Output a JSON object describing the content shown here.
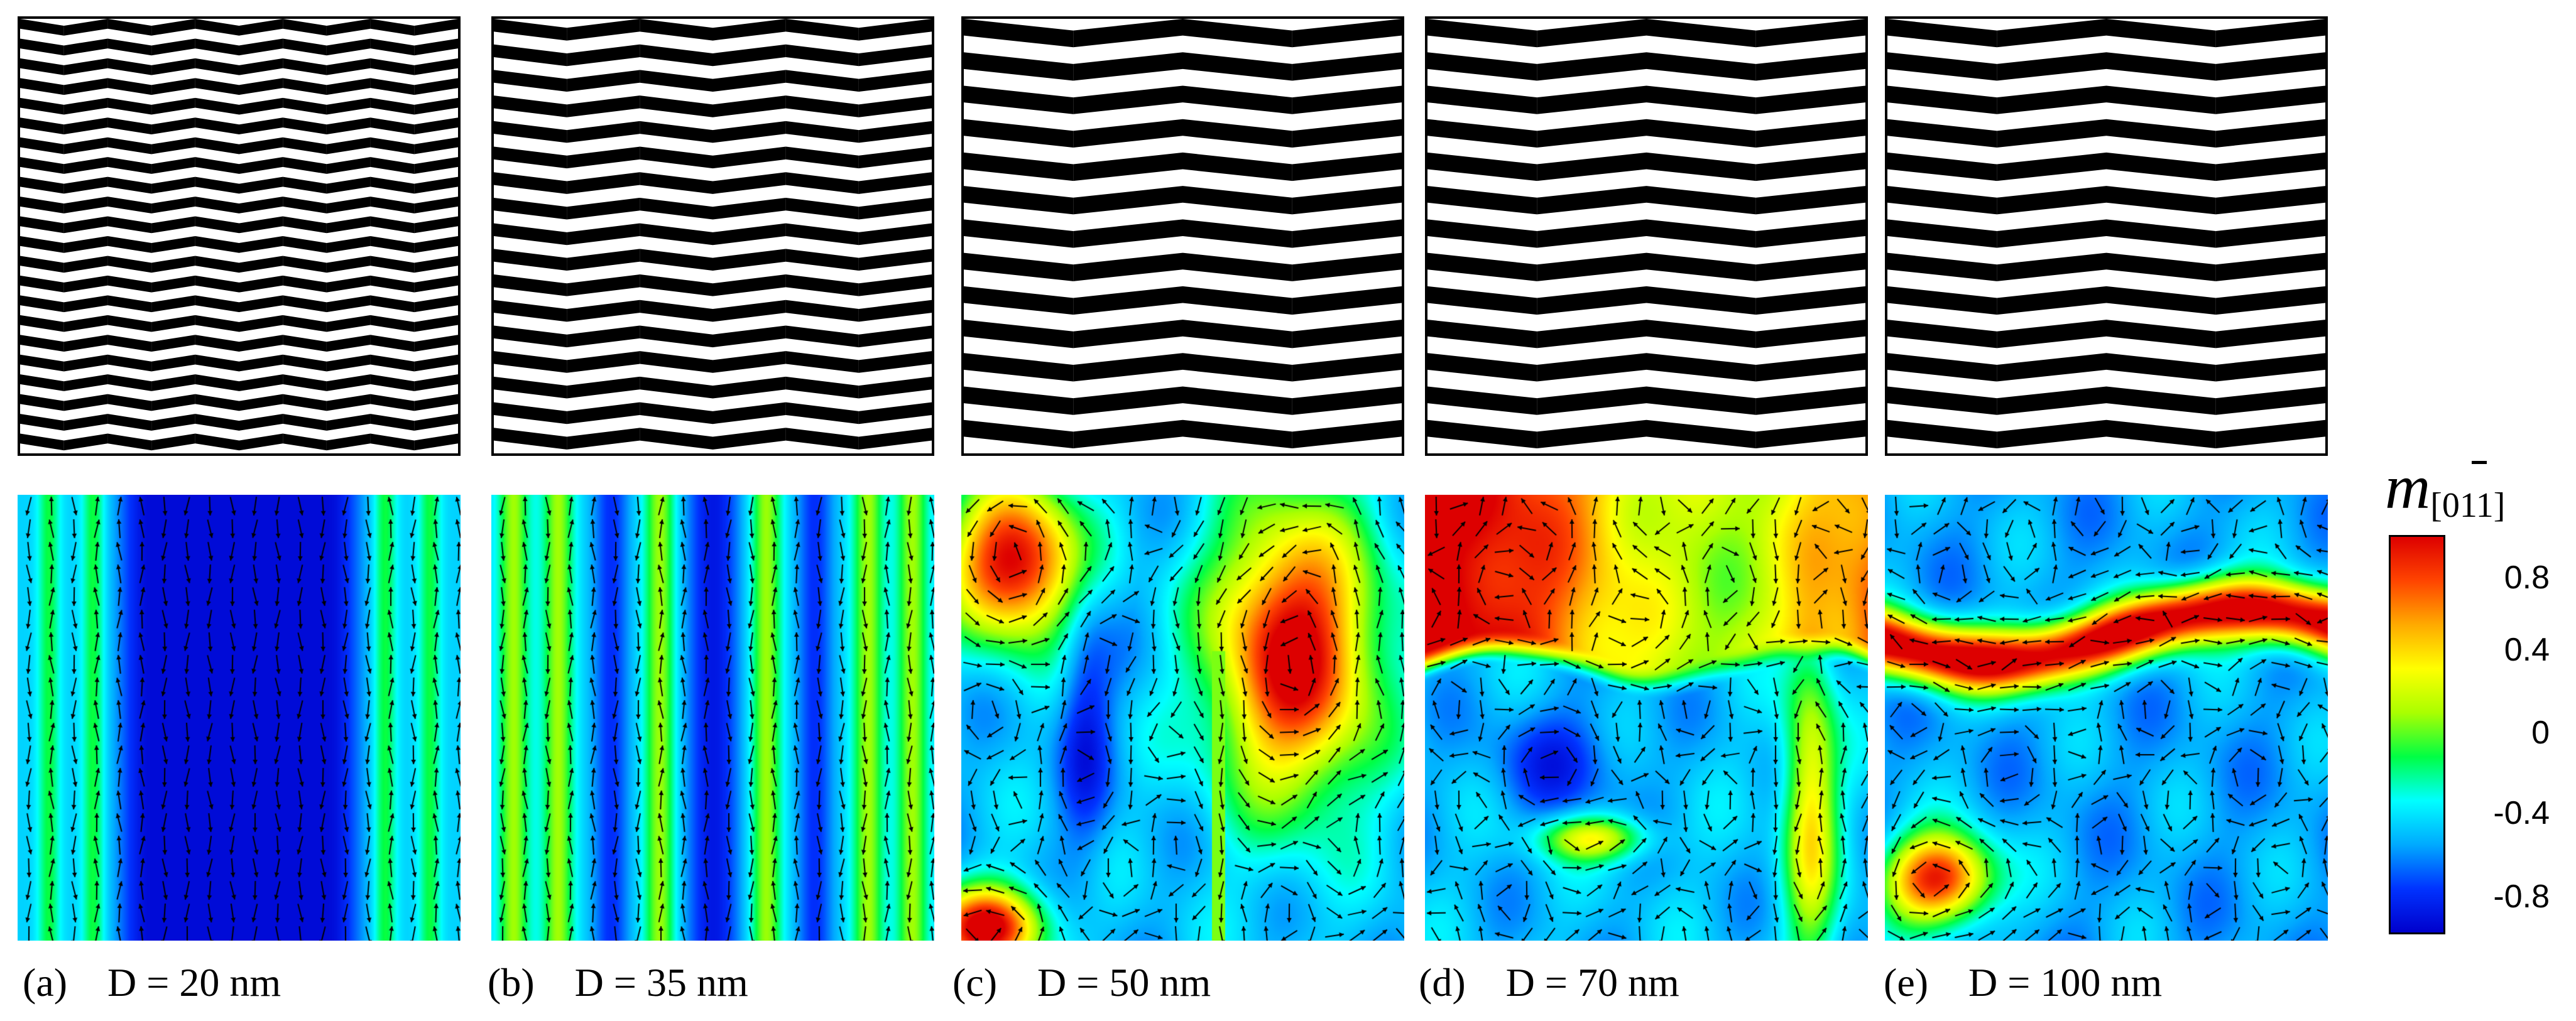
{
  "colorbar": {
    "title_m": "m",
    "title_sub": "[011]",
    "ticks": [
      0.8,
      0.4,
      0,
      -0.4,
      -0.8
    ],
    "tick_labels": [
      "0.8",
      "0.4",
      "0",
      "-0.4",
      "-0.8"
    ],
    "range": [
      -1,
      1
    ],
    "colors": [
      "#0000cc",
      "#0033ff",
      "#00aaff",
      "#00ffff",
      "#00ff44",
      "#aaff00",
      "#ffff00",
      "#ffaa00",
      "#ff4400",
      "#dd0000"
    ]
  },
  "panels": [
    {
      "id": "a",
      "caption": "(a)    D = 20 nm",
      "stripes": 22,
      "column_pairs": 5,
      "pattern": "stripes-a"
    },
    {
      "id": "b",
      "caption": "(b)    D = 35 nm",
      "stripes": 17,
      "column_pairs": 3,
      "pattern": "stripes-b"
    },
    {
      "id": "c",
      "caption": "(c)    D = 50 nm",
      "stripes": 13,
      "column_pairs": 2,
      "pattern": "domains-c"
    },
    {
      "id": "d",
      "caption": "(d)    D = 70 nm",
      "stripes": 13,
      "column_pairs": 2,
      "pattern": "domains-d"
    },
    {
      "id": "e",
      "caption": "(e)    D = 100 nm",
      "stripes": 13,
      "column_pairs": 2,
      "pattern": "domains-e"
    }
  ]
}
